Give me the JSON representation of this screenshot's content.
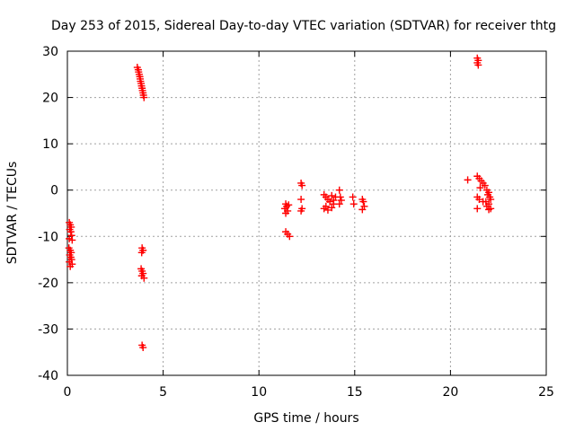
{
  "chart_data": {
    "type": "scatter",
    "title": "Day 253 of 2015, Sidereal Day-to-day VTEC variation (SDTVAR) for receiver thtg",
    "xlabel": "GPS time / hours",
    "ylabel": "SDTVAR / TECUs",
    "xlim": [
      0,
      25
    ],
    "ylim": [
      -40,
      30
    ],
    "xticks": [
      0,
      5,
      10,
      15,
      20,
      25
    ],
    "yticks": [
      -40,
      -30,
      -20,
      -10,
      0,
      10,
      20,
      30
    ],
    "xtick_labels": [
      "0",
      "5",
      "10",
      "15",
      "20",
      "25"
    ],
    "ytick_labels": [
      "-40",
      "-30",
      "-20",
      "-10",
      "0",
      "10",
      "20",
      "30"
    ],
    "grid": true,
    "marker": "+",
    "series": [
      {
        "name": "SDTVAR",
        "color": "#ff0000",
        "points": [
          [
            0.1,
            -7.0
          ],
          [
            0.15,
            -7.5
          ],
          [
            0.2,
            -8.0
          ],
          [
            0.12,
            -8.5
          ],
          [
            0.18,
            -9.0
          ],
          [
            0.22,
            -9.8
          ],
          [
            0.1,
            -10.5
          ],
          [
            0.25,
            -10.8
          ],
          [
            0.08,
            -12.5
          ],
          [
            0.15,
            -13.0
          ],
          [
            0.2,
            -13.5
          ],
          [
            0.12,
            -14.0
          ],
          [
            0.18,
            -14.5
          ],
          [
            0.22,
            -15.0
          ],
          [
            0.1,
            -15.5
          ],
          [
            0.25,
            -16.0
          ],
          [
            0.15,
            -16.5
          ],
          [
            3.65,
            26.5
          ],
          [
            3.7,
            26.0
          ],
          [
            3.72,
            25.5
          ],
          [
            3.75,
            25.0
          ],
          [
            3.78,
            24.5
          ],
          [
            3.8,
            24.0
          ],
          [
            3.82,
            23.5
          ],
          [
            3.85,
            23.0
          ],
          [
            3.87,
            22.5
          ],
          [
            3.9,
            22.0
          ],
          [
            3.92,
            21.5
          ],
          [
            3.95,
            21.0
          ],
          [
            3.97,
            20.5
          ],
          [
            4.0,
            20.0
          ],
          [
            3.9,
            -12.5
          ],
          [
            3.95,
            -13.0
          ],
          [
            3.88,
            -13.5
          ],
          [
            3.85,
            -17.0
          ],
          [
            3.9,
            -17.5
          ],
          [
            3.95,
            -18.0
          ],
          [
            3.88,
            -18.5
          ],
          [
            4.0,
            -19.0
          ],
          [
            3.9,
            -33.5
          ],
          [
            3.95,
            -34.0
          ],
          [
            11.4,
            -3.0
          ],
          [
            11.45,
            -3.5
          ],
          [
            11.35,
            -4.0
          ],
          [
            11.5,
            -4.5
          ],
          [
            11.4,
            -5.0
          ],
          [
            11.55,
            -3.2
          ],
          [
            11.4,
            -9.0
          ],
          [
            11.5,
            -9.5
          ],
          [
            11.6,
            -10.0
          ],
          [
            12.2,
            1.5
          ],
          [
            12.25,
            1.0
          ],
          [
            12.2,
            -2.0
          ],
          [
            12.25,
            -4.0
          ],
          [
            12.2,
            -4.5
          ],
          [
            13.4,
            -1.0
          ],
          [
            13.5,
            -1.5
          ],
          [
            13.6,
            -2.0
          ],
          [
            13.7,
            -2.5
          ],
          [
            13.8,
            -1.2
          ],
          [
            13.9,
            -3.0
          ],
          [
            13.5,
            -3.5
          ],
          [
            13.4,
            -4.0
          ],
          [
            13.6,
            -4.3
          ],
          [
            13.8,
            -3.8
          ],
          [
            14.0,
            -1.5
          ],
          [
            13.9,
            -2.2
          ],
          [
            14.2,
            0.0
          ],
          [
            14.25,
            -1.5
          ],
          [
            14.2,
            -3.0
          ],
          [
            14.3,
            -2.2
          ],
          [
            14.9,
            -1.5
          ],
          [
            14.95,
            -3.0
          ],
          [
            15.4,
            -2.0
          ],
          [
            15.45,
            -2.5
          ],
          [
            15.5,
            -3.5
          ],
          [
            15.4,
            -4.2
          ],
          [
            21.4,
            28.5
          ],
          [
            21.45,
            28.0
          ],
          [
            21.4,
            27.5
          ],
          [
            21.45,
            27.0
          ],
          [
            20.9,
            2.2
          ],
          [
            21.4,
            3.0
          ],
          [
            21.5,
            2.5
          ],
          [
            21.6,
            2.0
          ],
          [
            21.7,
            1.5
          ],
          [
            21.8,
            1.0
          ],
          [
            21.55,
            0.5
          ],
          [
            21.9,
            0.0
          ],
          [
            22.0,
            -0.5
          ],
          [
            21.95,
            -1.0
          ],
          [
            22.05,
            -1.5
          ],
          [
            22.1,
            -2.0
          ],
          [
            21.85,
            -2.5
          ],
          [
            22.0,
            -3.0
          ],
          [
            21.9,
            -3.5
          ],
          [
            22.1,
            -4.0
          ],
          [
            21.4,
            -1.5
          ],
          [
            21.5,
            -2.0
          ],
          [
            21.4,
            -4.0
          ],
          [
            21.7,
            -2.5
          ],
          [
            22.0,
            -4.2
          ]
        ]
      }
    ]
  }
}
